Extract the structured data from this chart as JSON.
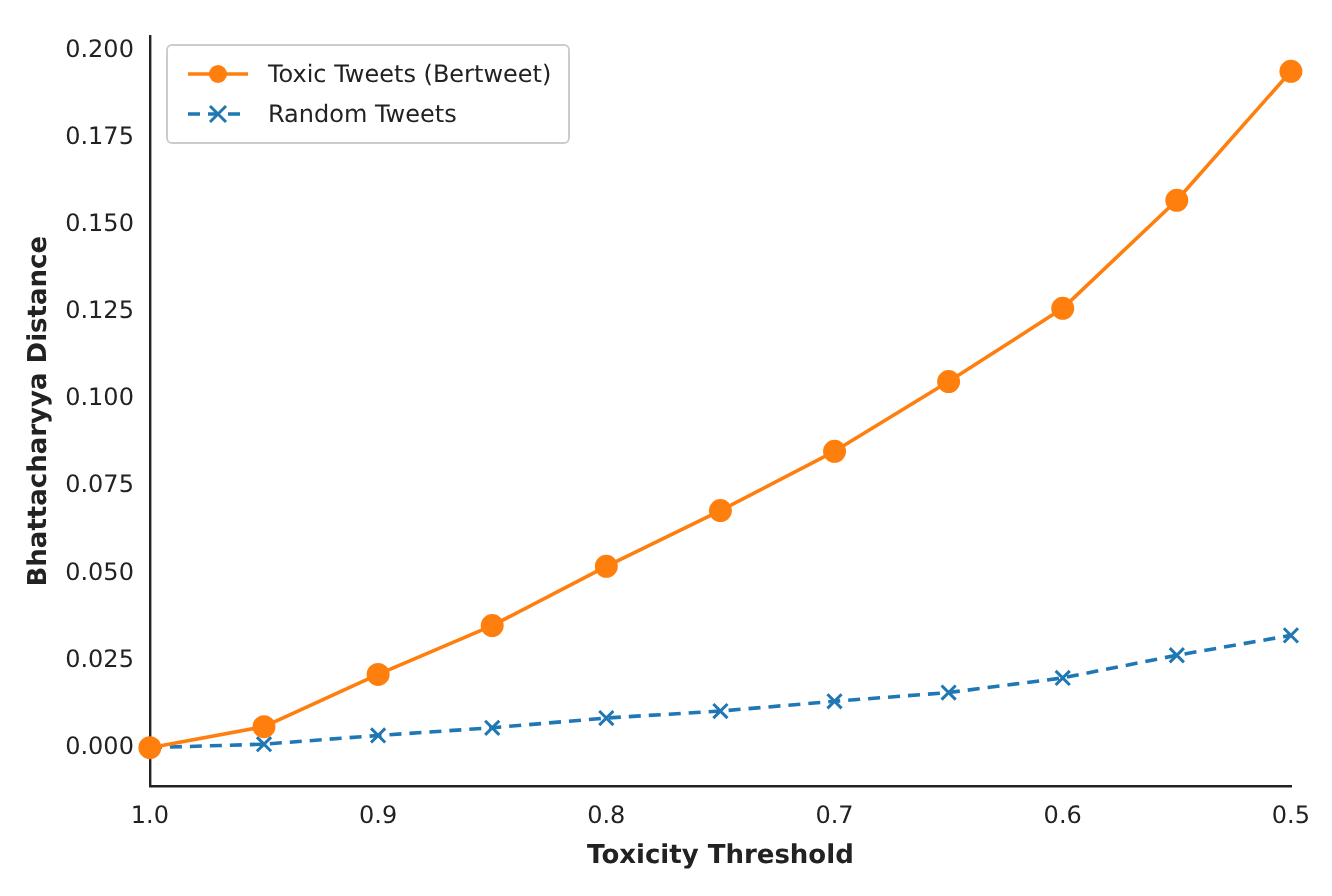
{
  "chart_data": {
    "type": "line",
    "xlabel": "Toxicity Threshold",
    "ylabel": "Bhattacharyya Distance",
    "x": [
      1.0,
      0.95,
      0.9,
      0.85,
      0.8,
      0.75,
      0.7,
      0.65,
      0.6,
      0.55,
      0.5
    ],
    "series": [
      {
        "name": "Toxic Tweets (Bertweet)",
        "color": "#ff7f0e",
        "marker": "circle",
        "line_style": "solid",
        "values": [
          0,
          0.006,
          0.021,
          0.035,
          0.052,
          0.068,
          0.085,
          0.105,
          0.126,
          0.157,
          0.194
        ]
      },
      {
        "name": "Random Tweets",
        "color": "#1f77b4",
        "marker": "cross",
        "line_style": "dashed",
        "values": [
          0,
          0.001,
          0.0035,
          0.0057,
          0.0085,
          0.0105,
          0.0133,
          0.0158,
          0.02,
          0.0265,
          0.0322
        ]
      }
    ],
    "xlim": [
      1.0,
      0.5
    ],
    "xticks": [
      {
        "value": 1,
        "label": "1.0"
      },
      0.9,
      0.8,
      0.7,
      0.6,
      0.5
    ],
    "ylim": [
      -0.011,
      0.204
    ],
    "yticks": [
      {
        "value": 0,
        "label": "0.000"
      },
      {
        "value": 0.025,
        "label": "0.025"
      },
      {
        "value": 0.05,
        "label": "0.050"
      },
      {
        "value": 0.075,
        "label": "0.075"
      },
      {
        "value": 0.1,
        "label": "0.100"
      },
      {
        "value": 0.125,
        "label": "0.125"
      },
      {
        "value": 0.15,
        "label": "0.150"
      },
      {
        "value": 0.175,
        "label": "0.175"
      },
      {
        "value": 0.2,
        "label": "0.200"
      }
    ],
    "grid": false,
    "legend": "top left"
  }
}
